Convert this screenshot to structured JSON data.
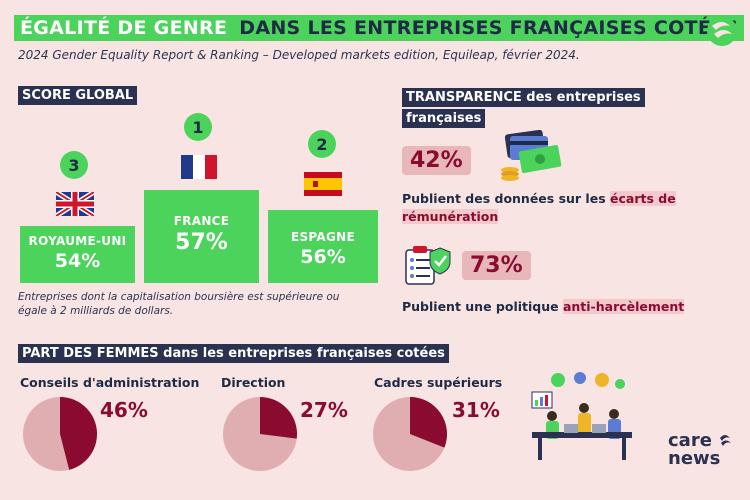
{
  "title": {
    "part1": "ÉGALITÉ DE GENRE",
    "part2": "DANS LES ENTREPRISES FRANÇAISES COTÉES"
  },
  "subtitle": "2024 Gender Equality Report & Ranking – Developed markets edition, Equileap, février 2024.",
  "score_global": {
    "header": "SCORE GLOBAL",
    "podium": [
      {
        "rank": "3",
        "label": "ROYAUME-UNI",
        "value": "54%"
      },
      {
        "rank": "1",
        "label": "FRANCE",
        "value": "57%"
      },
      {
        "rank": "2",
        "label": "ESPAGNE",
        "value": "56%"
      }
    ],
    "note": "Entreprises dont la capitalisation boursière est supérieure ou égale à 2 milliards de dollars."
  },
  "transparence": {
    "header_line1": "TRANSPARENCE des entreprises",
    "header_line2": "françaises",
    "stat1": {
      "value": "42%",
      "text": "Publient des données sur les ",
      "highlight_1": "écarts de",
      "highlight_2": "rémunération"
    },
    "stat2": {
      "value": "73%",
      "text": "Publient une politique ",
      "highlight": "anti-harcèlement"
    }
  },
  "part_femmes": {
    "header": "PART DES FEMMES dans les entreprises françaises cotées",
    "pies": [
      {
        "label": "Conseils d'administration",
        "value": 46,
        "value_label": "46%"
      },
      {
        "label": "Direction",
        "value": 27,
        "value_label": "27%"
      },
      {
        "label": "Cadres supérieurs",
        "value": 31,
        "value_label": "31%"
      }
    ]
  },
  "logo": {
    "line1": "care",
    "line2": "news"
  },
  "colors": {
    "green": "#4bd35c",
    "navy": "#2b3150",
    "burgundy": "#8a0a30",
    "pie_light": "#e0aeb0",
    "background": "#f9e4e4"
  }
}
